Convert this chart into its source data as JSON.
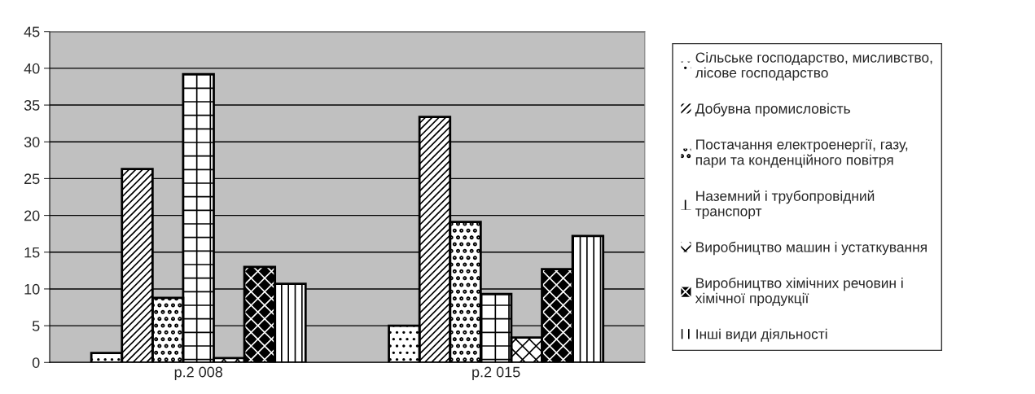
{
  "chart_data": {
    "type": "bar",
    "categories": [
      "р.2 008",
      "р.2 015"
    ],
    "series": [
      {
        "name": "Сільське господарство, мисливство,\nлісове господарство",
        "color": "#ffffff",
        "values": [
          1.3,
          5.0
        ]
      },
      {
        "name": "Добувна промисловість",
        "color": "#ffffff",
        "values": [
          26.3,
          33.4
        ]
      },
      {
        "name": "Постачання електроенергії, газу,\nпари та конденційного повітря",
        "color": "#ffffff",
        "values": [
          8.8,
          19.1
        ]
      },
      {
        "name": "Наземний і трубопровідний\nтранспорт",
        "color": "#ffffff",
        "values": [
          39.2,
          9.3
        ]
      },
      {
        "name": "Виробництво машин і устаткування",
        "color": "#ffffff",
        "values": [
          0.6,
          3.4
        ]
      },
      {
        "name": "Виробництво хімічних речовин і\nхімічної продукції",
        "color": "#000000",
        "values": [
          13.0,
          12.7
        ]
      },
      {
        "name": "Інші види діяльності",
        "color": "#ffffff",
        "values": [
          10.7,
          17.2
        ]
      }
    ],
    "ylim": [
      0,
      45
    ],
    "yticks": [
      0,
      5,
      10,
      15,
      20,
      25,
      30,
      35,
      40,
      45
    ],
    "grid": "y",
    "legend": "right"
  }
}
